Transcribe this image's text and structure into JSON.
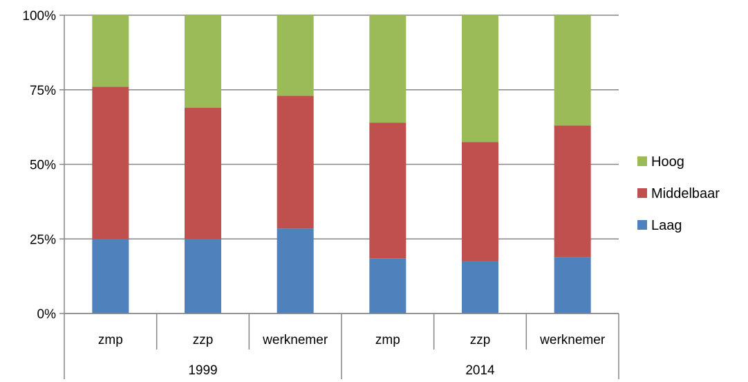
{
  "chart_data": {
    "type": "bar",
    "stacked": true,
    "normalized": true,
    "groups": [
      {
        "label": "1999",
        "categories": [
          "zmp",
          "zzp",
          "werknemer"
        ]
      },
      {
        "label": "2014",
        "categories": [
          "zmp",
          "zzp",
          "werknemer"
        ]
      }
    ],
    "categories": [
      "zmp",
      "zzp",
      "werknemer",
      "zmp",
      "zzp",
      "werknemer"
    ],
    "series": [
      {
        "name": "Laag",
        "color": "#4f81bd",
        "values": [
          25,
          25,
          28.5,
          18.5,
          17.5,
          19
        ]
      },
      {
        "name": "Middelbaar",
        "color": "#c0504d",
        "values": [
          51,
          44,
          44.5,
          45.5,
          40,
          44
        ]
      },
      {
        "name": "Hoog",
        "color": "#9bbb59",
        "values": [
          24,
          31,
          27,
          36,
          42.5,
          37
        ]
      }
    ],
    "ylim": [
      0,
      100
    ],
    "yticks": [
      "0%",
      "25%",
      "50%",
      "75%",
      "100%"
    ],
    "ytick_values": [
      0,
      25,
      50,
      75,
      100
    ],
    "grid": true,
    "legend": {
      "position": "right",
      "order": [
        "Hoog",
        "Middelbaar",
        "Laag"
      ]
    }
  }
}
